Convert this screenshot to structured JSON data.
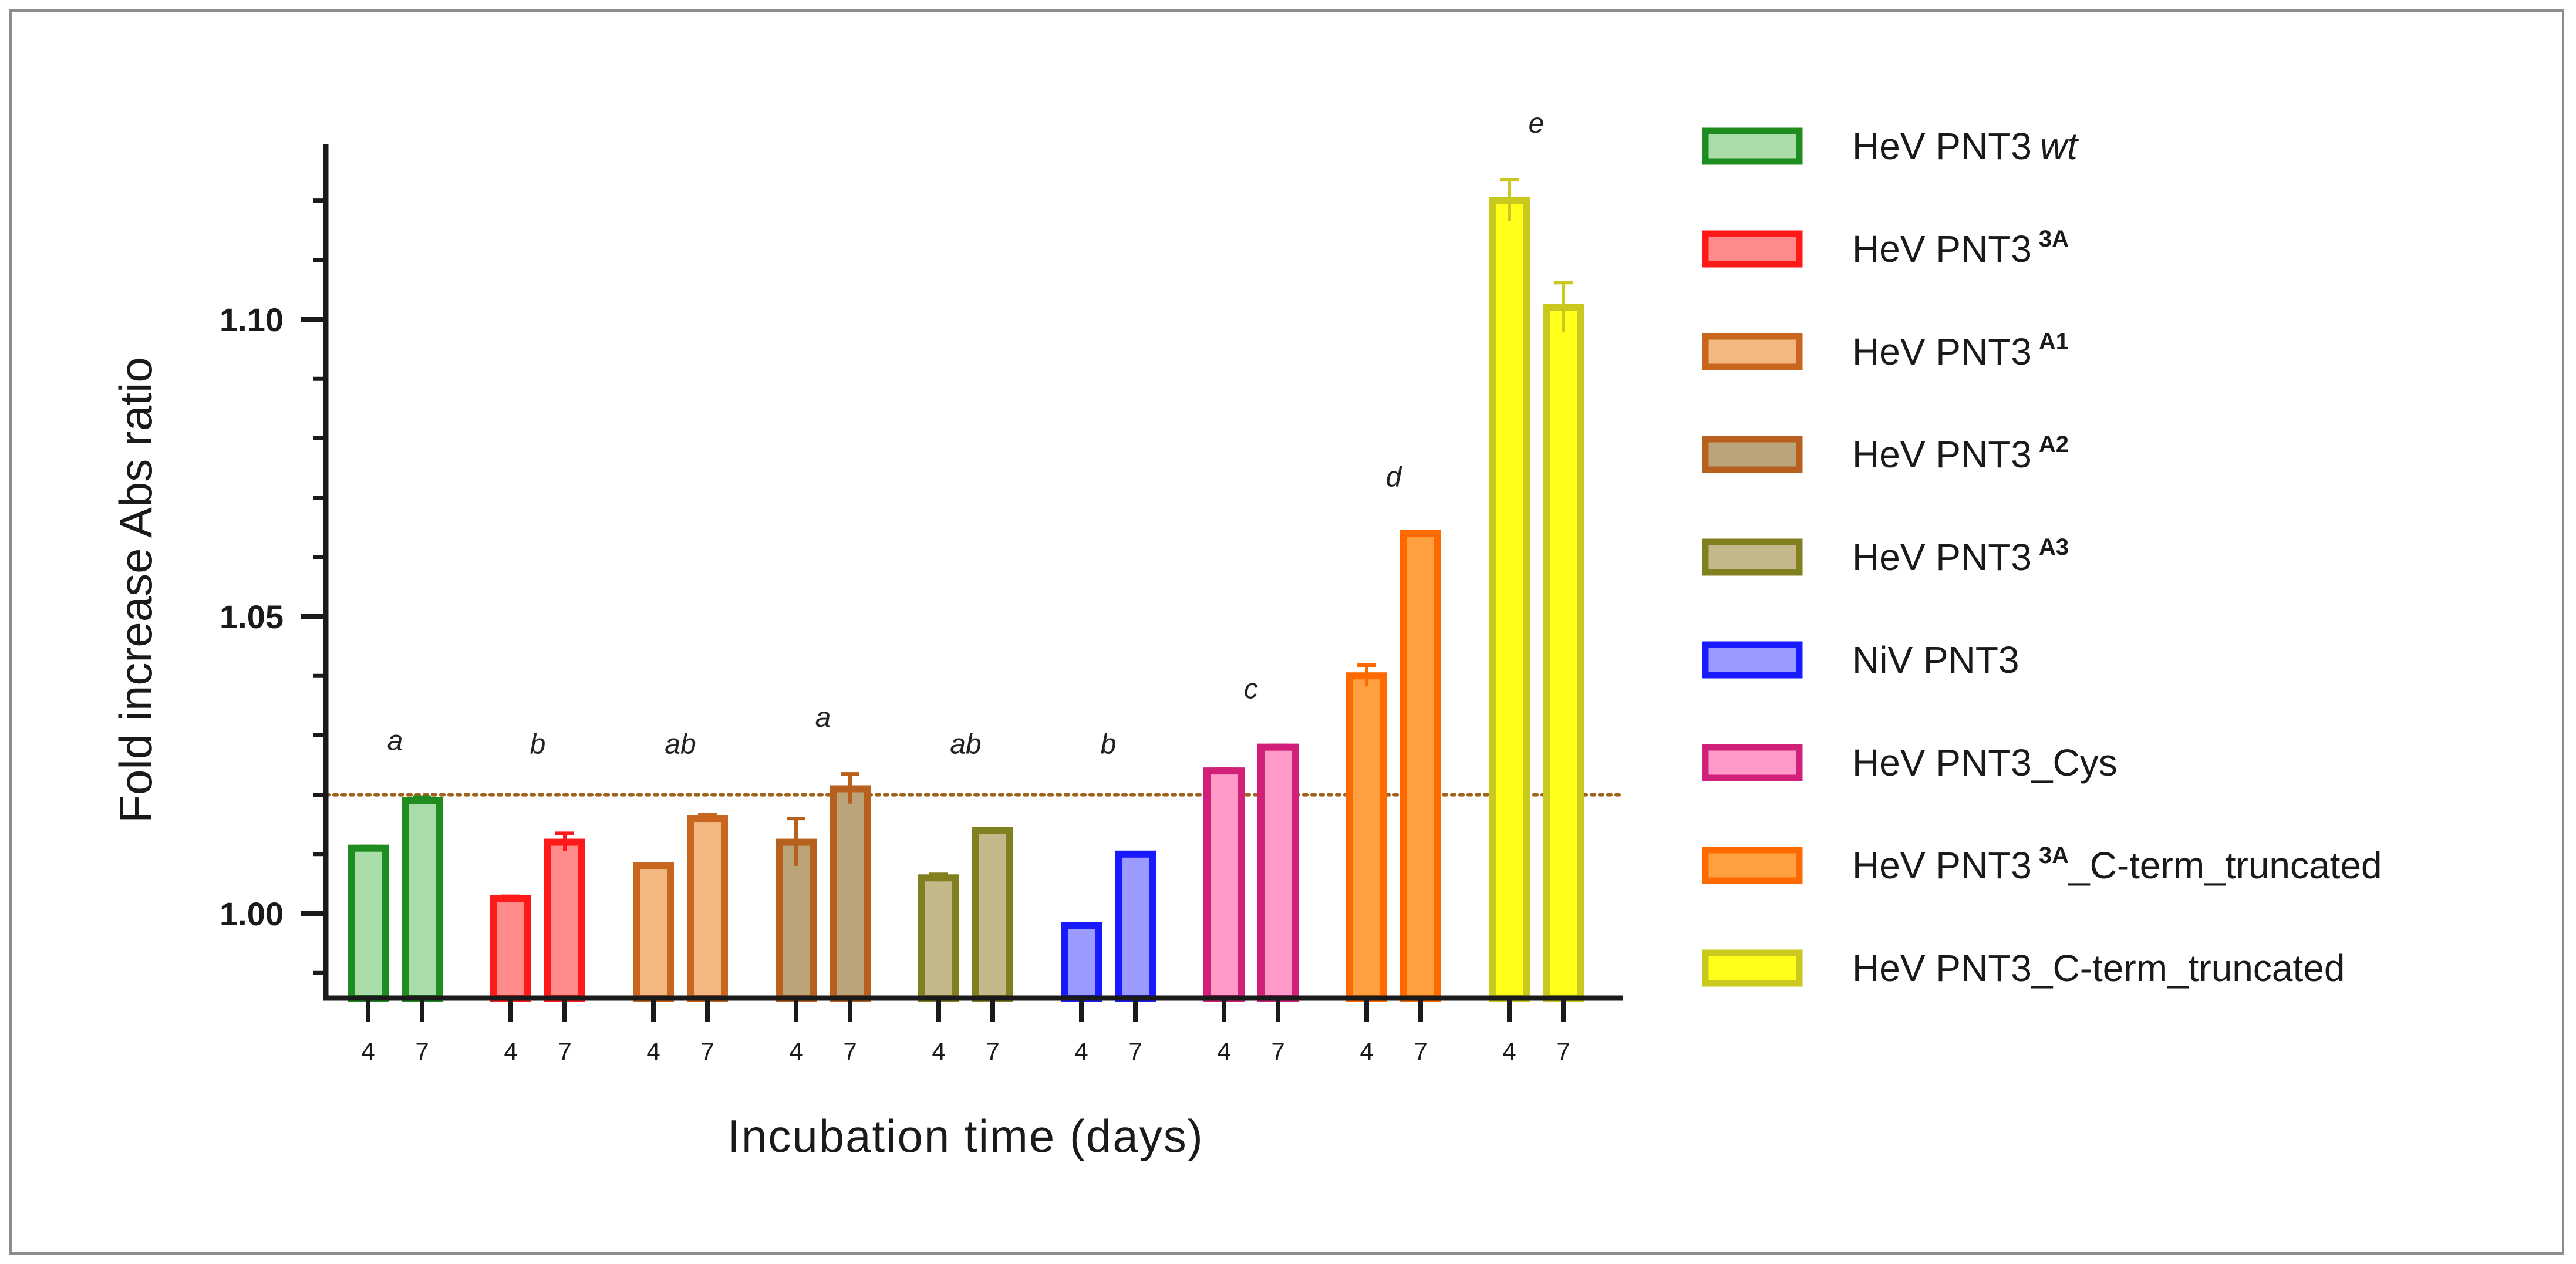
{
  "chart_data": {
    "type": "bar",
    "ylabel": "Fold increase Abs ratio",
    "xlabel": "Incubation time (days)",
    "ylim": [
      0.986,
      1.127
    ],
    "yticks": [
      1.0,
      1.05,
      1.1
    ],
    "ytick_labels": [
      "1.00",
      "1.05",
      "1.10"
    ],
    "minor_tick_step": 0.01,
    "reference_line": 1.02,
    "reference_color": "#a0621c",
    "groups": [
      {
        "name": "HeV PNT3",
        "sup": "",
        "suffix_italic": "wt",
        "tail": "",
        "letter": "a",
        "stroke": "#1e8c1e",
        "fill": "#a8dca8",
        "bars": [
          {
            "day": "4",
            "value": 1.011,
            "err": 0.0003
          },
          {
            "day": "7",
            "value": 1.019,
            "err": 0.0006
          }
        ]
      },
      {
        "name": "HeV PNT3",
        "sup": "3A",
        "suffix_italic": "",
        "tail": "",
        "letter": "b",
        "stroke": "#ff1a1a",
        "fill": "#ff8a8a",
        "bars": [
          {
            "day": "4",
            "value": 1.0025,
            "err": 0.0004
          },
          {
            "day": "7",
            "value": 1.012,
            "err": 0.0015
          }
        ]
      },
      {
        "name": "HeV PNT3",
        "sup": "A1",
        "suffix_italic": "",
        "tail": "",
        "letter": "ab",
        "stroke": "#c8651e",
        "fill": "#f2b880",
        "bars": [
          {
            "day": "4",
            "value": 1.008,
            "err": 0.0
          },
          {
            "day": "7",
            "value": 1.016,
            "err": 0.0006
          }
        ]
      },
      {
        "name": "HeV PNT3",
        "sup": "A2",
        "suffix_italic": "",
        "tail": "",
        "letter": "a",
        "stroke": "#b8601e",
        "fill": "#baa478",
        "bars": [
          {
            "day": "4",
            "value": 1.012,
            "err": 0.004
          },
          {
            "day": "7",
            "value": 1.021,
            "err": 0.0025
          }
        ]
      },
      {
        "name": "HeV PNT3",
        "sup": "A3",
        "suffix_italic": "",
        "tail": "",
        "letter": "ab",
        "stroke": "#808020",
        "fill": "#c2b88a",
        "bars": [
          {
            "day": "4",
            "value": 1.006,
            "err": 0.0006
          },
          {
            "day": "7",
            "value": 1.014,
            "err": 0.0
          }
        ]
      },
      {
        "name": "NiV PNT3",
        "sup": "",
        "suffix_italic": "",
        "tail": "",
        "letter": "b",
        "stroke": "#1a1aff",
        "fill": "#9a9aff",
        "bars": [
          {
            "day": "4",
            "value": 0.998,
            "err": 0.0
          },
          {
            "day": "7",
            "value": 1.01,
            "err": 0.0
          }
        ]
      },
      {
        "name": "HeV PNT3_Cys",
        "sup": "",
        "suffix_italic": "",
        "tail": "",
        "letter": "c",
        "stroke": "#d0207a",
        "fill": "#ff9ac8",
        "bars": [
          {
            "day": "4",
            "value": 1.024,
            "err": 0.0004
          },
          {
            "day": "7",
            "value": 1.028,
            "err": 0.0003
          }
        ]
      },
      {
        "name": "HeV PNT3",
        "sup": "3A",
        "suffix_italic": "",
        "tail": "_C-term_truncated",
        "letter": "d",
        "stroke": "#ff6a00",
        "fill": "#ffa040",
        "bars": [
          {
            "day": "4",
            "value": 1.04,
            "err": 0.0018
          },
          {
            "day": "7",
            "value": 1.064,
            "err": 0.0
          }
        ]
      },
      {
        "name": "HeV PNT3_C-term_truncated",
        "sup": "",
        "suffix_italic": "",
        "tail": "",
        "letter": "e",
        "stroke": "#c8c81e",
        "fill": "#ffff1a",
        "bars": [
          {
            "day": "4",
            "value": 1.12,
            "err": 0.0035
          },
          {
            "day": "7",
            "value": 1.102,
            "err": 0.0042
          }
        ]
      }
    ]
  },
  "colors": {
    "axis": "#1a1a1a",
    "frame": "#8c8c8c"
  }
}
